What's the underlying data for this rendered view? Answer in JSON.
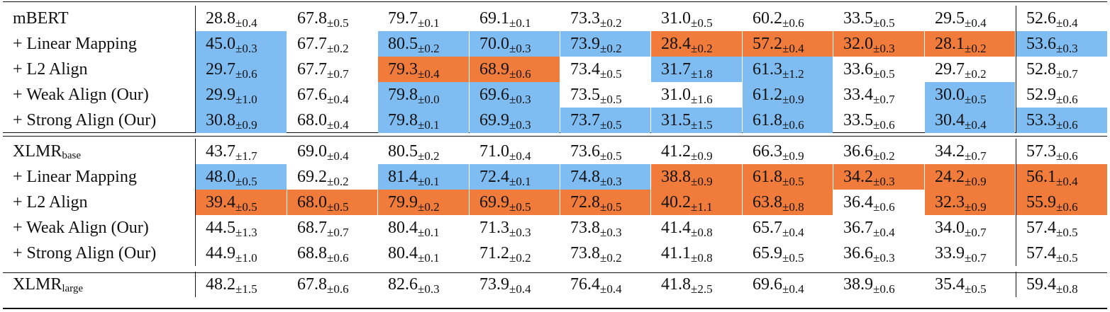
{
  "colors": {
    "better": "#7fbcf2",
    "worse": "#f07b3a",
    "rule": "#111111"
  },
  "groups": [
    {
      "rows": [
        {
          "label": "mBERT",
          "sub": "",
          "cells": [
            {
              "v": "28.8",
              "sd": "±0.4",
              "c": "none"
            },
            {
              "v": "67.8",
              "sd": "±0.5",
              "c": "none"
            },
            {
              "v": "79.7",
              "sd": "±0.1",
              "c": "none"
            },
            {
              "v": "69.1",
              "sd": "±0.1",
              "c": "none"
            },
            {
              "v": "73.3",
              "sd": "±0.2",
              "c": "none"
            },
            {
              "v": "31.0",
              "sd": "±0.5",
              "c": "none"
            },
            {
              "v": "60.2",
              "sd": "±0.6",
              "c": "none"
            },
            {
              "v": "33.5",
              "sd": "±0.5",
              "c": "none"
            },
            {
              "v": "29.5",
              "sd": "±0.4",
              "c": "none"
            },
            {
              "v": "52.6",
              "sd": "±0.4",
              "c": "none"
            }
          ]
        },
        {
          "label": "+ Linear Mapping",
          "sub": "",
          "cells": [
            {
              "v": "45.0",
              "sd": "±0.3",
              "c": "blue"
            },
            {
              "v": "67.7",
              "sd": "±0.2",
              "c": "none"
            },
            {
              "v": "80.5",
              "sd": "±0.2",
              "c": "blue"
            },
            {
              "v": "70.0",
              "sd": "±0.3",
              "c": "blue"
            },
            {
              "v": "73.9",
              "sd": "±0.2",
              "c": "blue"
            },
            {
              "v": "28.4",
              "sd": "±0.2",
              "c": "orange"
            },
            {
              "v": "57.2",
              "sd": "±0.4",
              "c": "orange"
            },
            {
              "v": "32.0",
              "sd": "±0.3",
              "c": "orange"
            },
            {
              "v": "28.1",
              "sd": "±0.2",
              "c": "orange"
            },
            {
              "v": "53.6",
              "sd": "±0.3",
              "c": "blue"
            }
          ]
        },
        {
          "label": "+ L2 Align",
          "sub": "",
          "cells": [
            {
              "v": "29.7",
              "sd": "±0.6",
              "c": "blue"
            },
            {
              "v": "67.7",
              "sd": "±0.7",
              "c": "none"
            },
            {
              "v": "79.3",
              "sd": "±0.4",
              "c": "orange"
            },
            {
              "v": "68.9",
              "sd": "±0.6",
              "c": "orange"
            },
            {
              "v": "73.4",
              "sd": "±0.5",
              "c": "none"
            },
            {
              "v": "31.7",
              "sd": "±1.8",
              "c": "blue"
            },
            {
              "v": "61.3",
              "sd": "±1.2",
              "c": "blue"
            },
            {
              "v": "33.6",
              "sd": "±0.5",
              "c": "none"
            },
            {
              "v": "29.7",
              "sd": "±0.2",
              "c": "none"
            },
            {
              "v": "52.8",
              "sd": "±0.7",
              "c": "none"
            }
          ]
        },
        {
          "label": "+ Weak Align (Our)",
          "sub": "",
          "cells": [
            {
              "v": "29.9",
              "sd": "±1.0",
              "c": "blue"
            },
            {
              "v": "67.6",
              "sd": "±0.4",
              "c": "none"
            },
            {
              "v": "79.8",
              "sd": "±0.0",
              "c": "blue"
            },
            {
              "v": "69.6",
              "sd": "±0.3",
              "c": "blue"
            },
            {
              "v": "73.5",
              "sd": "±0.5",
              "c": "none"
            },
            {
              "v": "31.0",
              "sd": "±1.6",
              "c": "none"
            },
            {
              "v": "61.2",
              "sd": "±0.9",
              "c": "blue"
            },
            {
              "v": "33.4",
              "sd": "±0.7",
              "c": "none"
            },
            {
              "v": "30.0",
              "sd": "±0.5",
              "c": "blue"
            },
            {
              "v": "52.9",
              "sd": "±0.6",
              "c": "none"
            }
          ]
        },
        {
          "label": "+ Strong Align (Our)",
          "sub": "",
          "cells": [
            {
              "v": "30.8",
              "sd": "±0.9",
              "c": "blue"
            },
            {
              "v": "68.0",
              "sd": "±0.4",
              "c": "none"
            },
            {
              "v": "79.8",
              "sd": "±0.1",
              "c": "blue"
            },
            {
              "v": "69.9",
              "sd": "±0.3",
              "c": "blue"
            },
            {
              "v": "73.7",
              "sd": "±0.5",
              "c": "blue"
            },
            {
              "v": "31.5",
              "sd": "±1.5",
              "c": "blue"
            },
            {
              "v": "61.8",
              "sd": "±0.6",
              "c": "blue"
            },
            {
              "v": "33.5",
              "sd": "±0.6",
              "c": "none"
            },
            {
              "v": "30.4",
              "sd": "±0.4",
              "c": "blue"
            },
            {
              "v": "53.3",
              "sd": "±0.6",
              "c": "blue"
            }
          ]
        }
      ]
    },
    {
      "rows": [
        {
          "label": "XLMR",
          "sub": "base",
          "cells": [
            {
              "v": "43.7",
              "sd": "±1.7",
              "c": "none"
            },
            {
              "v": "69.0",
              "sd": "±0.4",
              "c": "none"
            },
            {
              "v": "80.5",
              "sd": "±0.2",
              "c": "none"
            },
            {
              "v": "71.0",
              "sd": "±0.4",
              "c": "none"
            },
            {
              "v": "73.6",
              "sd": "±0.5",
              "c": "none"
            },
            {
              "v": "41.2",
              "sd": "±0.9",
              "c": "none"
            },
            {
              "v": "66.3",
              "sd": "±0.9",
              "c": "none"
            },
            {
              "v": "36.6",
              "sd": "±0.2",
              "c": "none"
            },
            {
              "v": "34.2",
              "sd": "±0.7",
              "c": "none"
            },
            {
              "v": "57.3",
              "sd": "±0.6",
              "c": "none"
            }
          ]
        },
        {
          "label": "+ Linear Mapping",
          "sub": "",
          "cells": [
            {
              "v": "48.0",
              "sd": "±0.5",
              "c": "blue"
            },
            {
              "v": "69.2",
              "sd": "±0.2",
              "c": "none"
            },
            {
              "v": "81.4",
              "sd": "±0.1",
              "c": "blue"
            },
            {
              "v": "72.4",
              "sd": "±0.1",
              "c": "blue"
            },
            {
              "v": "74.8",
              "sd": "±0.3",
              "c": "blue"
            },
            {
              "v": "38.8",
              "sd": "±0.9",
              "c": "orange"
            },
            {
              "v": "61.8",
              "sd": "±0.5",
              "c": "orange"
            },
            {
              "v": "34.2",
              "sd": "±0.3",
              "c": "orange"
            },
            {
              "v": "24.2",
              "sd": "±0.9",
              "c": "orange"
            },
            {
              "v": "56.1",
              "sd": "±0.4",
              "c": "orange"
            }
          ]
        },
        {
          "label": "+ L2 Align",
          "sub": "",
          "cells": [
            {
              "v": "39.4",
              "sd": "±0.5",
              "c": "orange"
            },
            {
              "v": "68.0",
              "sd": "±0.5",
              "c": "orange"
            },
            {
              "v": "79.9",
              "sd": "±0.2",
              "c": "orange"
            },
            {
              "v": "69.9",
              "sd": "±0.5",
              "c": "orange"
            },
            {
              "v": "72.8",
              "sd": "±0.5",
              "c": "orange"
            },
            {
              "v": "40.2",
              "sd": "±1.1",
              "c": "orange"
            },
            {
              "v": "63.8",
              "sd": "±0.8",
              "c": "orange"
            },
            {
              "v": "36.4",
              "sd": "±0.6",
              "c": "none"
            },
            {
              "v": "32.3",
              "sd": "±0.9",
              "c": "orange"
            },
            {
              "v": "55.9",
              "sd": "±0.6",
              "c": "orange"
            }
          ]
        },
        {
          "label": "+ Weak Align (Our)",
          "sub": "",
          "cells": [
            {
              "v": "44.5",
              "sd": "±1.3",
              "c": "none"
            },
            {
              "v": "68.7",
              "sd": "±0.7",
              "c": "none"
            },
            {
              "v": "80.4",
              "sd": "±0.1",
              "c": "none"
            },
            {
              "v": "71.3",
              "sd": "±0.3",
              "c": "none"
            },
            {
              "v": "73.8",
              "sd": "±0.3",
              "c": "none"
            },
            {
              "v": "41.4",
              "sd": "±0.8",
              "c": "none"
            },
            {
              "v": "65.7",
              "sd": "±0.4",
              "c": "none"
            },
            {
              "v": "36.7",
              "sd": "±0.4",
              "c": "none"
            },
            {
              "v": "34.0",
              "sd": "±0.7",
              "c": "none"
            },
            {
              "v": "57.4",
              "sd": "±0.5",
              "c": "none"
            }
          ]
        },
        {
          "label": "+ Strong Align (Our)",
          "sub": "",
          "cells": [
            {
              "v": "44.9",
              "sd": "±1.0",
              "c": "none"
            },
            {
              "v": "68.8",
              "sd": "±0.6",
              "c": "none"
            },
            {
              "v": "80.4",
              "sd": "±0.1",
              "c": "none"
            },
            {
              "v": "71.2",
              "sd": "±0.2",
              "c": "none"
            },
            {
              "v": "73.8",
              "sd": "±0.2",
              "c": "none"
            },
            {
              "v": "41.1",
              "sd": "±0.8",
              "c": "none"
            },
            {
              "v": "65.9",
              "sd": "±0.5",
              "c": "none"
            },
            {
              "v": "36.6",
              "sd": "±0.3",
              "c": "none"
            },
            {
              "v": "33.9",
              "sd": "±0.7",
              "c": "none"
            },
            {
              "v": "57.4",
              "sd": "±0.5",
              "c": "none"
            }
          ]
        }
      ]
    },
    {
      "rows": [
        {
          "label": "XLMR",
          "sub": "large",
          "cells": [
            {
              "v": "48.2",
              "sd": "±1.5",
              "c": "none"
            },
            {
              "v": "67.8",
              "sd": "±0.6",
              "c": "none"
            },
            {
              "v": "82.6",
              "sd": "±0.3",
              "c": "none"
            },
            {
              "v": "73.9",
              "sd": "±0.4",
              "c": "none"
            },
            {
              "v": "76.4",
              "sd": "±0.4",
              "c": "none"
            },
            {
              "v": "41.8",
              "sd": "±2.5",
              "c": "none"
            },
            {
              "v": "69.6",
              "sd": "±0.4",
              "c": "none"
            },
            {
              "v": "38.9",
              "sd": "±0.6",
              "c": "none"
            },
            {
              "v": "35.4",
              "sd": "±0.5",
              "c": "none"
            },
            {
              "v": "59.4",
              "sd": "±0.8",
              "c": "none"
            }
          ]
        }
      ]
    }
  ]
}
